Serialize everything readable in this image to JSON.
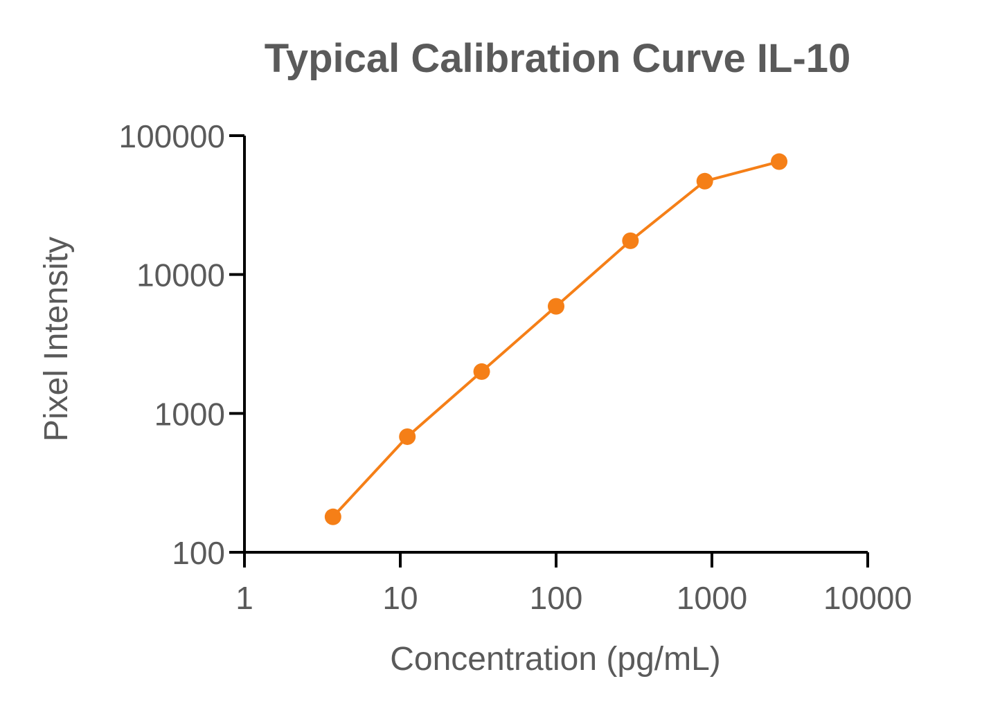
{
  "chart_data": {
    "type": "line",
    "title": "Typical Calibration Curve IL-10",
    "xlabel": "Concentration (pg/mL)",
    "ylabel": "Pixel Intensity",
    "x_scale": "log",
    "y_scale": "log",
    "xlim": [
      1,
      10000
    ],
    "ylim": [
      100,
      100000
    ],
    "x_ticks": [
      1,
      10,
      100,
      1000,
      10000
    ],
    "x_tick_labels": [
      "1",
      "10",
      "100",
      "1000",
      "10000"
    ],
    "y_ticks": [
      100,
      1000,
      10000,
      100000
    ],
    "y_tick_labels": [
      "100",
      "1000",
      "10000",
      "100000"
    ],
    "grid": false,
    "legend": "none",
    "series": [
      {
        "color": "#f57f17",
        "x": [
          3.7,
          11.1,
          33.3,
          100,
          300,
          900,
          2700
        ],
        "y": [
          180,
          680,
          2000,
          5900,
          17500,
          47000,
          65000
        ]
      }
    ]
  }
}
